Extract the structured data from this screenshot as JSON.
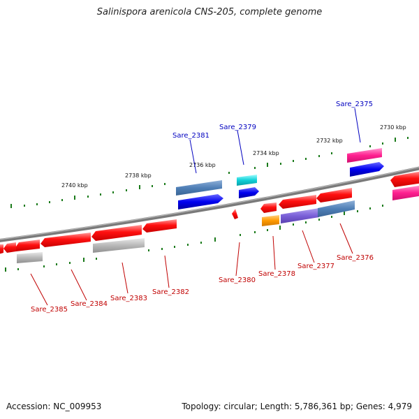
{
  "title": "Salinispora arenicola CNS-205, complete genome",
  "footer": {
    "accession": "Accession: NC_009953",
    "summary": "Topology: circular; Length: 5,786,361 bp; Genes: 4,979"
  },
  "colors": {
    "backbone": "#808080",
    "tick": "#1a7a1a",
    "label_top": "#0000c0",
    "label_bottom": "#c00000"
  },
  "scale_labels": [
    "2740 kbp",
    "2738 kbp",
    "2736 kbp",
    "2734 kbp",
    "2732 kbp",
    "2730 kbp"
  ],
  "gene_labels_top": [
    "Sare_2381",
    "Sare_2379",
    "Sare_2375"
  ],
  "gene_labels_bottom": [
    "Sare_2385",
    "Sare_2384",
    "Sare_2383",
    "Sare_2382",
    "Sare_2380",
    "Sare_2378",
    "Sare_2377",
    "Sare_2376"
  ]
}
